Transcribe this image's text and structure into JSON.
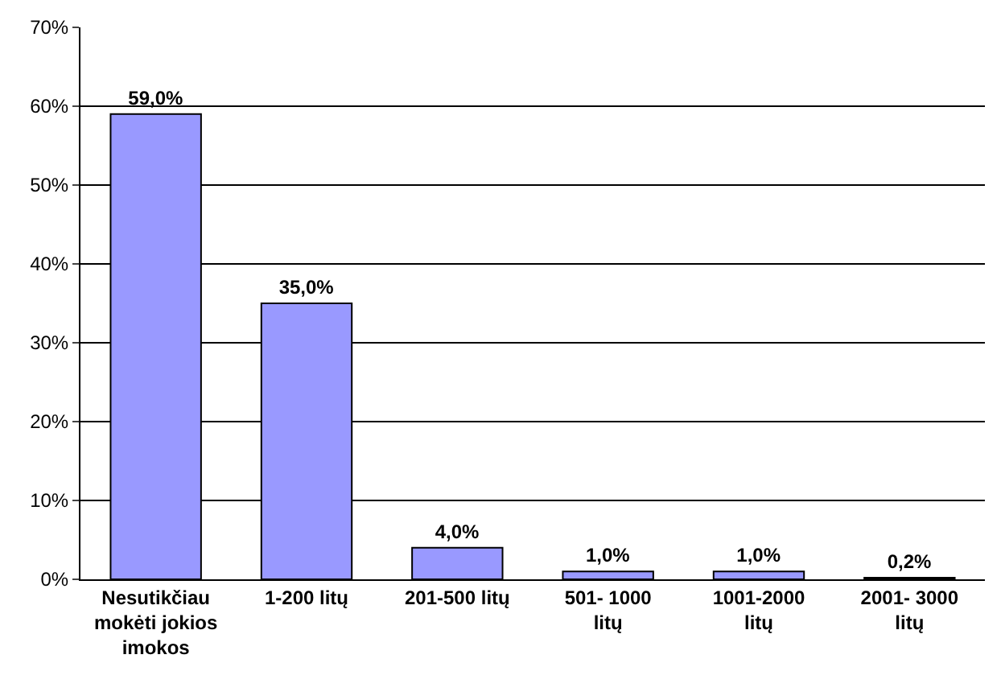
{
  "chart_data": {
    "type": "bar",
    "categories": [
      "Nesutikčiau mokėti jokios imokos",
      "1-200 litų",
      "201-500 litų",
      "501- 1000 litų",
      "1001-2000 litų",
      "2001- 3000 litų"
    ],
    "values": [
      59.0,
      35.0,
      4.0,
      1.0,
      1.0,
      0.2
    ],
    "value_labels": [
      "59,0%",
      "35,0%",
      "4,0%",
      "1,0%",
      "1,0%",
      "0,2%"
    ],
    "color": "#9999ff",
    "ylim": [
      0,
      70
    ],
    "yticks": [
      {
        "value": 0,
        "label": "0%"
      },
      {
        "value": 10,
        "label": "10%"
      },
      {
        "value": 20,
        "label": "20%"
      },
      {
        "value": 30,
        "label": "30%"
      },
      {
        "value": 40,
        "label": "40%"
      },
      {
        "value": 50,
        "label": "50%"
      },
      {
        "value": 60,
        "label": "60%"
      },
      {
        "value": 70,
        "label": "70%"
      }
    ],
    "grid": "y",
    "legend": false
  }
}
